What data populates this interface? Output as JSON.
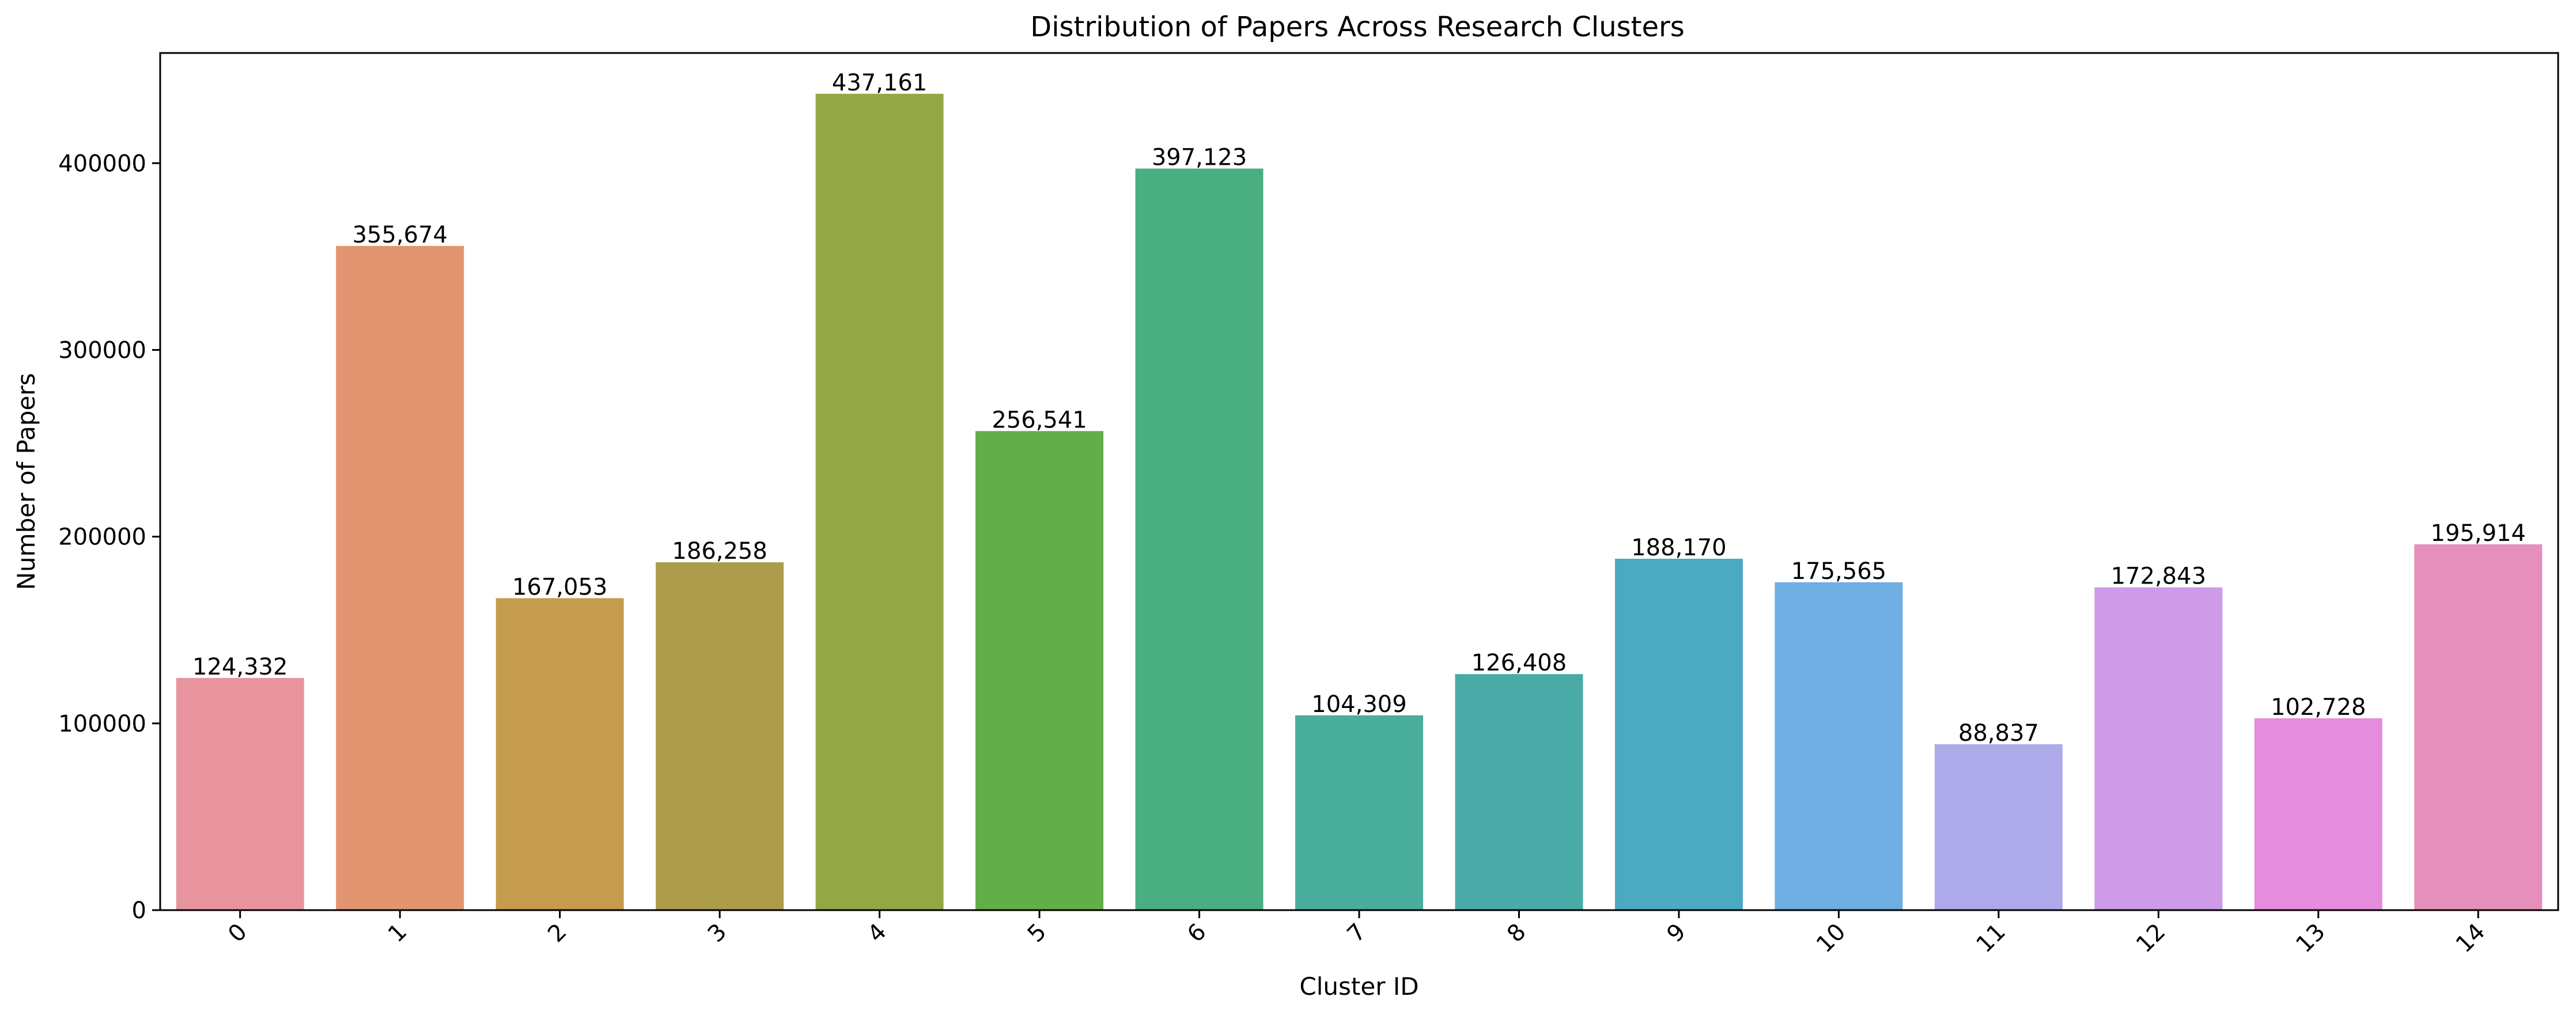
{
  "chart_data": {
    "type": "bar",
    "title": "Distribution of Papers Across Research Clusters",
    "xlabel": "Cluster ID",
    "ylabel": "Number of Papers",
    "categories": [
      "0",
      "1",
      "2",
      "3",
      "4",
      "5",
      "6",
      "7",
      "8",
      "9",
      "10",
      "11",
      "12",
      "13",
      "14"
    ],
    "values": [
      124332,
      355674,
      167053,
      186258,
      437161,
      256541,
      397123,
      104309,
      126408,
      188170,
      175565,
      88837,
      172843,
      102728,
      195914
    ],
    "value_labels": [
      "124,332",
      "355,674",
      "167,053",
      "186,258",
      "437,161",
      "256,541",
      "397,123",
      "104,309",
      "126,408",
      "188,170",
      "175,565",
      "88,837",
      "172,843",
      "102,728",
      "195,914"
    ],
    "colors": [
      "#e8949f",
      "#e39470",
      "#c59b4d",
      "#ad9c4c",
      "#94a746",
      "#62ae48",
      "#4aae83",
      "#4aae9c",
      "#4aaaa8",
      "#4ca9c2",
      "#6eaee2",
      "#aeaaea",
      "#cd9be8",
      "#e68cdd",
      "#e78fbc"
    ],
    "ylim": [
      0,
      459000
    ],
    "yticks": [
      0,
      100000,
      200000,
      300000,
      400000
    ],
    "ytick_labels": [
      "0",
      "100000",
      "200000",
      "300000",
      "400000"
    ],
    "xtick_rotation": 45,
    "grid": false,
    "legend": "none"
  }
}
